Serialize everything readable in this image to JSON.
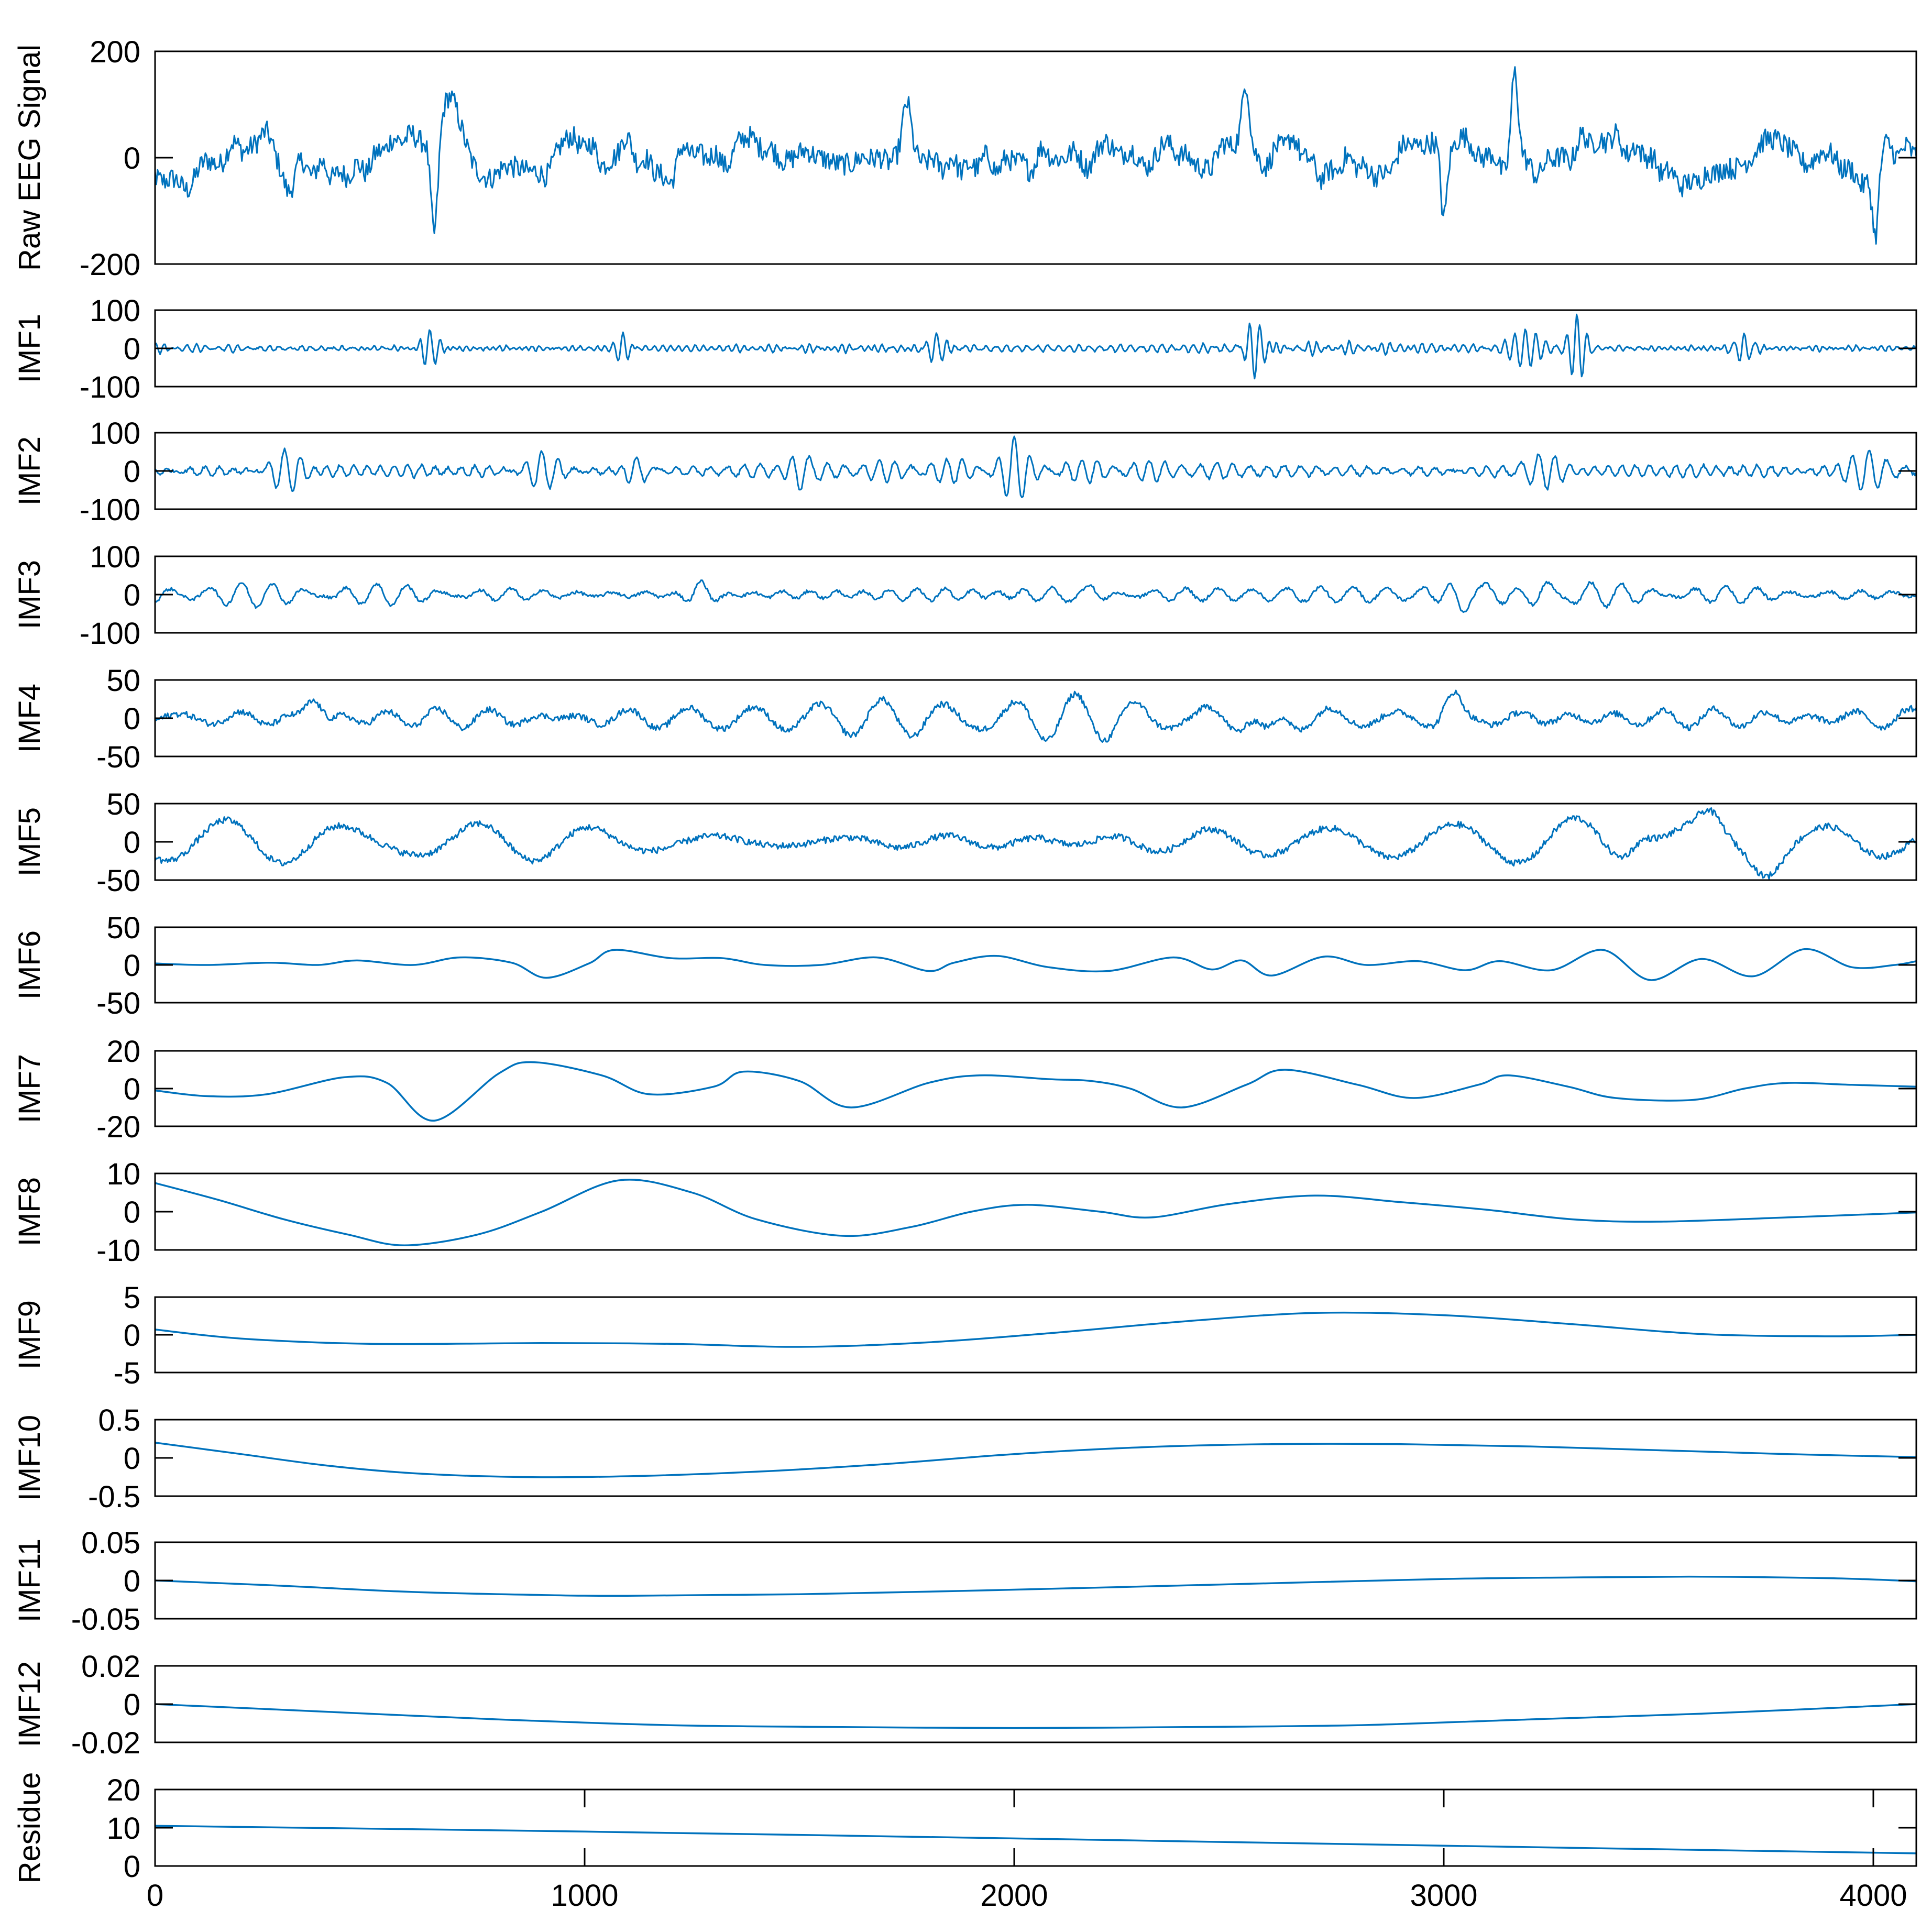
{
  "figure": {
    "accent_color": "#0072BD",
    "axis_color": "#000000"
  },
  "chart_data": {
    "type": "line",
    "title": "",
    "x_axis": {
      "range": [
        0,
        4100
      ],
      "ticks": [
        0,
        1000,
        2000,
        3000,
        4000
      ],
      "tick_labels": [
        "0",
        "1000",
        "2000",
        "3000",
        "4000"
      ]
    },
    "panels": [
      {
        "name": "raw-eeg",
        "ylabel": "Raw EEG Signal",
        "ylim": [
          -200,
          200
        ],
        "yticks": [
          "200",
          "0",
          "-200"
        ],
        "signal": {
          "kind": "noise",
          "amp": 40,
          "components": [
            [
              0.45,
              0.016
            ],
            [
              0.3,
              0.045
            ],
            [
              0.18,
              0.09
            ],
            [
              0.12,
              0.15
            ],
            [
              0.2,
              0.007
            ]
          ],
          "bursts": [
            [
              650,
              -190,
              12
            ],
            [
              3165,
              185,
              12
            ],
            [
              2540,
              135,
              12
            ],
            [
              3000,
              -125,
              10
            ],
            [
              4005,
              -125,
              10
            ],
            [
              690,
              80,
              30
            ],
            [
              1750,
              120,
              14
            ],
            [
              310,
              -85,
              18
            ]
          ]
        }
      },
      {
        "name": "imf1",
        "ylabel": "IMF1",
        "ylim": [
          -100,
          100
        ],
        "yticks": [
          "100",
          "0",
          "-100"
        ],
        "signal": {
          "kind": "hf",
          "amp": 9,
          "components": [
            [
              0.5,
              0.26
            ],
            [
              0.4,
              0.33
            ],
            [
              0.3,
              0.41
            ]
          ],
          "bursts": [
            [
              640,
              55,
              25
            ],
            [
              2560,
              -80,
              30
            ],
            [
              3310,
              85,
              25
            ],
            [
              1090,
              40,
              20
            ],
            [
              1820,
              45,
              25
            ],
            [
              3190,
              50,
              40
            ],
            [
              3700,
              35,
              30
            ]
          ]
        }
      },
      {
        "name": "imf2",
        "ylabel": "IMF2",
        "ylim": [
          -100,
          100
        ],
        "yticks": [
          "100",
          "0",
          "-100"
        ],
        "signal": {
          "kind": "hf",
          "amp": 18,
          "components": [
            [
              0.6,
              0.16
            ],
            [
              0.4,
              0.2
            ]
          ],
          "bursts": [
            [
              300,
              50,
              50
            ],
            [
              900,
              40,
              50
            ],
            [
              1120,
              40,
              40
            ],
            [
              1500,
              -50,
              30
            ],
            [
              2000,
              55,
              30
            ],
            [
              3220,
              40,
              60
            ],
            [
              3990,
              55,
              60
            ]
          ]
        }
      },
      {
        "name": "imf3",
        "ylabel": "IMF3",
        "ylim": [
          -100,
          100
        ],
        "yticks": [
          "100",
          "0",
          "-100"
        ],
        "signal": {
          "kind": "hf",
          "amp": 18,
          "components": [
            [
              0.6,
              0.08
            ],
            [
              0.4,
              0.1
            ]
          ],
          "bursts": [
            [
              3040,
              -55,
              40
            ],
            [
              2180,
              30,
              40
            ],
            [
              3240,
              40,
              50
            ],
            [
              1270,
              35,
              40
            ]
          ]
        }
      },
      {
        "name": "imf4",
        "ylabel": "IMF4",
        "ylim": [
          -50,
          50
        ],
        "yticks": [
          "50",
          "0",
          "-50"
        ],
        "signal": {
          "kind": "hf",
          "amp": 17,
          "components": [
            [
              0.7,
              0.042
            ],
            [
              0.3,
              0.055
            ]
          ],
          "bursts": [
            [
              3020,
              30,
              40
            ],
            [
              2590,
              -30,
              40
            ],
            [
              370,
              28,
              40
            ]
          ]
        }
      },
      {
        "name": "imf5",
        "ylabel": "IMF5",
        "ylim": [
          -50,
          50
        ],
        "yticks": [
          "50",
          "0",
          "-50"
        ],
        "signal": {
          "kind": "hf",
          "amp": 18,
          "components": [
            [
              0.75,
              0.022
            ],
            [
              0.25,
              0.03
            ]
          ],
          "bursts": [
            [
              3750,
              -30,
              60
            ],
            [
              3620,
              30,
              50
            ],
            [
              3460,
              25,
              50
            ]
          ]
        }
      },
      {
        "name": "imf6",
        "ylabel": "IMF6",
        "ylim": [
          -50,
          50
        ],
        "yticks": [
          "50",
          "0",
          "-50"
        ],
        "points": [
          [
            0,
            2
          ],
          [
            120,
            0
          ],
          [
            270,
            3
          ],
          [
            380,
            0
          ],
          [
            470,
            6
          ],
          [
            600,
            0
          ],
          [
            710,
            10
          ],
          [
            830,
            3
          ],
          [
            910,
            -17
          ],
          [
            1010,
            2
          ],
          [
            1070,
            20
          ],
          [
            1200,
            9
          ],
          [
            1320,
            9
          ],
          [
            1420,
            0
          ],
          [
            1550,
            0
          ],
          [
            1680,
            10
          ],
          [
            1800,
            -8
          ],
          [
            1860,
            3
          ],
          [
            1960,
            12
          ],
          [
            2080,
            -3
          ],
          [
            2220,
            -8
          ],
          [
            2370,
            10
          ],
          [
            2460,
            -6
          ],
          [
            2530,
            6
          ],
          [
            2600,
            -14
          ],
          [
            2720,
            11
          ],
          [
            2820,
            0
          ],
          [
            2940,
            5
          ],
          [
            3050,
            -7
          ],
          [
            3130,
            5
          ],
          [
            3250,
            -7
          ],
          [
            3370,
            20
          ],
          [
            3480,
            -20
          ],
          [
            3600,
            8
          ],
          [
            3720,
            -15
          ],
          [
            3840,
            21
          ],
          [
            3950,
            -3
          ],
          [
            4050,
            0
          ],
          [
            4100,
            5
          ]
        ]
      },
      {
        "name": "imf7",
        "ylabel": "IMF7",
        "ylim": [
          -20,
          20
        ],
        "yticks": [
          "20",
          "0",
          "-20"
        ],
        "points": [
          [
            0,
            -1
          ],
          [
            120,
            -4
          ],
          [
            260,
            -3
          ],
          [
            440,
            6
          ],
          [
            540,
            3
          ],
          [
            650,
            -17
          ],
          [
            800,
            8
          ],
          [
            880,
            14
          ],
          [
            1040,
            7
          ],
          [
            1150,
            -3
          ],
          [
            1300,
            1
          ],
          [
            1370,
            9
          ],
          [
            1500,
            4
          ],
          [
            1620,
            -10
          ],
          [
            1800,
            3
          ],
          [
            1920,
            7
          ],
          [
            2080,
            5
          ],
          [
            2180,
            4
          ],
          [
            2270,
            0
          ],
          [
            2390,
            -10
          ],
          [
            2540,
            2
          ],
          [
            2630,
            10
          ],
          [
            2800,
            2
          ],
          [
            2930,
            -5
          ],
          [
            3080,
            2
          ],
          [
            3150,
            7
          ],
          [
            3290,
            1
          ],
          [
            3400,
            -5
          ],
          [
            3580,
            -6
          ],
          [
            3700,
            0
          ],
          [
            3800,
            3
          ],
          [
            3950,
            2
          ],
          [
            4100,
            1
          ]
        ]
      },
      {
        "name": "imf8",
        "ylabel": "IMF8",
        "ylim": [
          -10,
          10
        ],
        "yticks": [
          "10",
          "0",
          "-10"
        ],
        "points": [
          [
            0,
            7.5
          ],
          [
            150,
            3
          ],
          [
            300,
            -2
          ],
          [
            450,
            -6
          ],
          [
            580,
            -8.8
          ],
          [
            750,
            -6
          ],
          [
            900,
            0
          ],
          [
            1080,
            8.2
          ],
          [
            1250,
            5
          ],
          [
            1400,
            -2
          ],
          [
            1600,
            -6.3
          ],
          [
            1760,
            -4
          ],
          [
            1900,
            0
          ],
          [
            2030,
            1.8
          ],
          [
            2200,
            0
          ],
          [
            2320,
            -1.5
          ],
          [
            2500,
            2
          ],
          [
            2700,
            4.2
          ],
          [
            2900,
            2.5
          ],
          [
            3100,
            0.5
          ],
          [
            3300,
            -2
          ],
          [
            3500,
            -2.6
          ],
          [
            3800,
            -1.5
          ],
          [
            4100,
            -0.2
          ]
        ]
      },
      {
        "name": "imf9",
        "ylabel": "IMF9",
        "ylim": [
          -5,
          5
        ],
        "yticks": [
          "5",
          "0",
          "-5"
        ],
        "points": [
          [
            0,
            0.7
          ],
          [
            200,
            -0.5
          ],
          [
            500,
            -1.2
          ],
          [
            900,
            -1.1
          ],
          [
            1200,
            -1.2
          ],
          [
            1500,
            -1.6
          ],
          [
            1800,
            -1.0
          ],
          [
            2100,
            0.3
          ],
          [
            2400,
            1.8
          ],
          [
            2700,
            2.9
          ],
          [
            3000,
            2.6
          ],
          [
            3300,
            1.4
          ],
          [
            3600,
            0.1
          ],
          [
            3900,
            -0.2
          ],
          [
            4100,
            0.0
          ]
        ]
      },
      {
        "name": "imf10",
        "ylabel": "IMF10",
        "ylim": [
          -0.5,
          0.5
        ],
        "yticks": [
          "0.5",
          "0",
          "-0.5"
        ],
        "points": [
          [
            0,
            0.2
          ],
          [
            200,
            0.05
          ],
          [
            400,
            -0.1
          ],
          [
            600,
            -0.2
          ],
          [
            850,
            -0.25
          ],
          [
            1100,
            -0.24
          ],
          [
            1400,
            -0.18
          ],
          [
            1700,
            -0.08
          ],
          [
            2000,
            0.05
          ],
          [
            2300,
            0.14
          ],
          [
            2600,
            0.18
          ],
          [
            2900,
            0.18
          ],
          [
            3200,
            0.15
          ],
          [
            3500,
            0.1
          ],
          [
            3800,
            0.05
          ],
          [
            4100,
            0.01
          ]
        ]
      },
      {
        "name": "imf11",
        "ylabel": "IMF11",
        "ylim": [
          -0.05,
          0.05
        ],
        "yticks": [
          "0.05",
          "0",
          "-0.05"
        ],
        "points": [
          [
            0,
            0.0
          ],
          [
            300,
            -0.007
          ],
          [
            600,
            -0.015
          ],
          [
            900,
            -0.019
          ],
          [
            1100,
            -0.02
          ],
          [
            1500,
            -0.018
          ],
          [
            2000,
            -0.012
          ],
          [
            2500,
            -0.005
          ],
          [
            3000,
            0.002
          ],
          [
            3300,
            0.004
          ],
          [
            3600,
            0.005
          ],
          [
            3900,
            0.003
          ],
          [
            4100,
            -0.001
          ]
        ]
      },
      {
        "name": "imf12",
        "ylabel": "IMF12",
        "ylim": [
          -0.02,
          0.02
        ],
        "yticks": [
          "0.02",
          "0",
          "-0.02"
        ],
        "points": [
          [
            0,
            0.0
          ],
          [
            400,
            -0.004
          ],
          [
            800,
            -0.008
          ],
          [
            1200,
            -0.011
          ],
          [
            1600,
            -0.012
          ],
          [
            2000,
            -0.0125
          ],
          [
            2400,
            -0.012
          ],
          [
            2800,
            -0.011
          ],
          [
            3200,
            -0.008
          ],
          [
            3600,
            -0.005
          ],
          [
            4100,
            0.0
          ]
        ]
      },
      {
        "name": "residue",
        "ylabel": "Residue",
        "ylim": [
          0,
          20
        ],
        "yticks": [
          "20",
          "10",
          "0"
        ],
        "points": [
          [
            0,
            10.5
          ],
          [
            1000,
            9.0
          ],
          [
            2000,
            7.2
          ],
          [
            3000,
            5.3
          ],
          [
            4100,
            3.3
          ]
        ]
      }
    ]
  }
}
